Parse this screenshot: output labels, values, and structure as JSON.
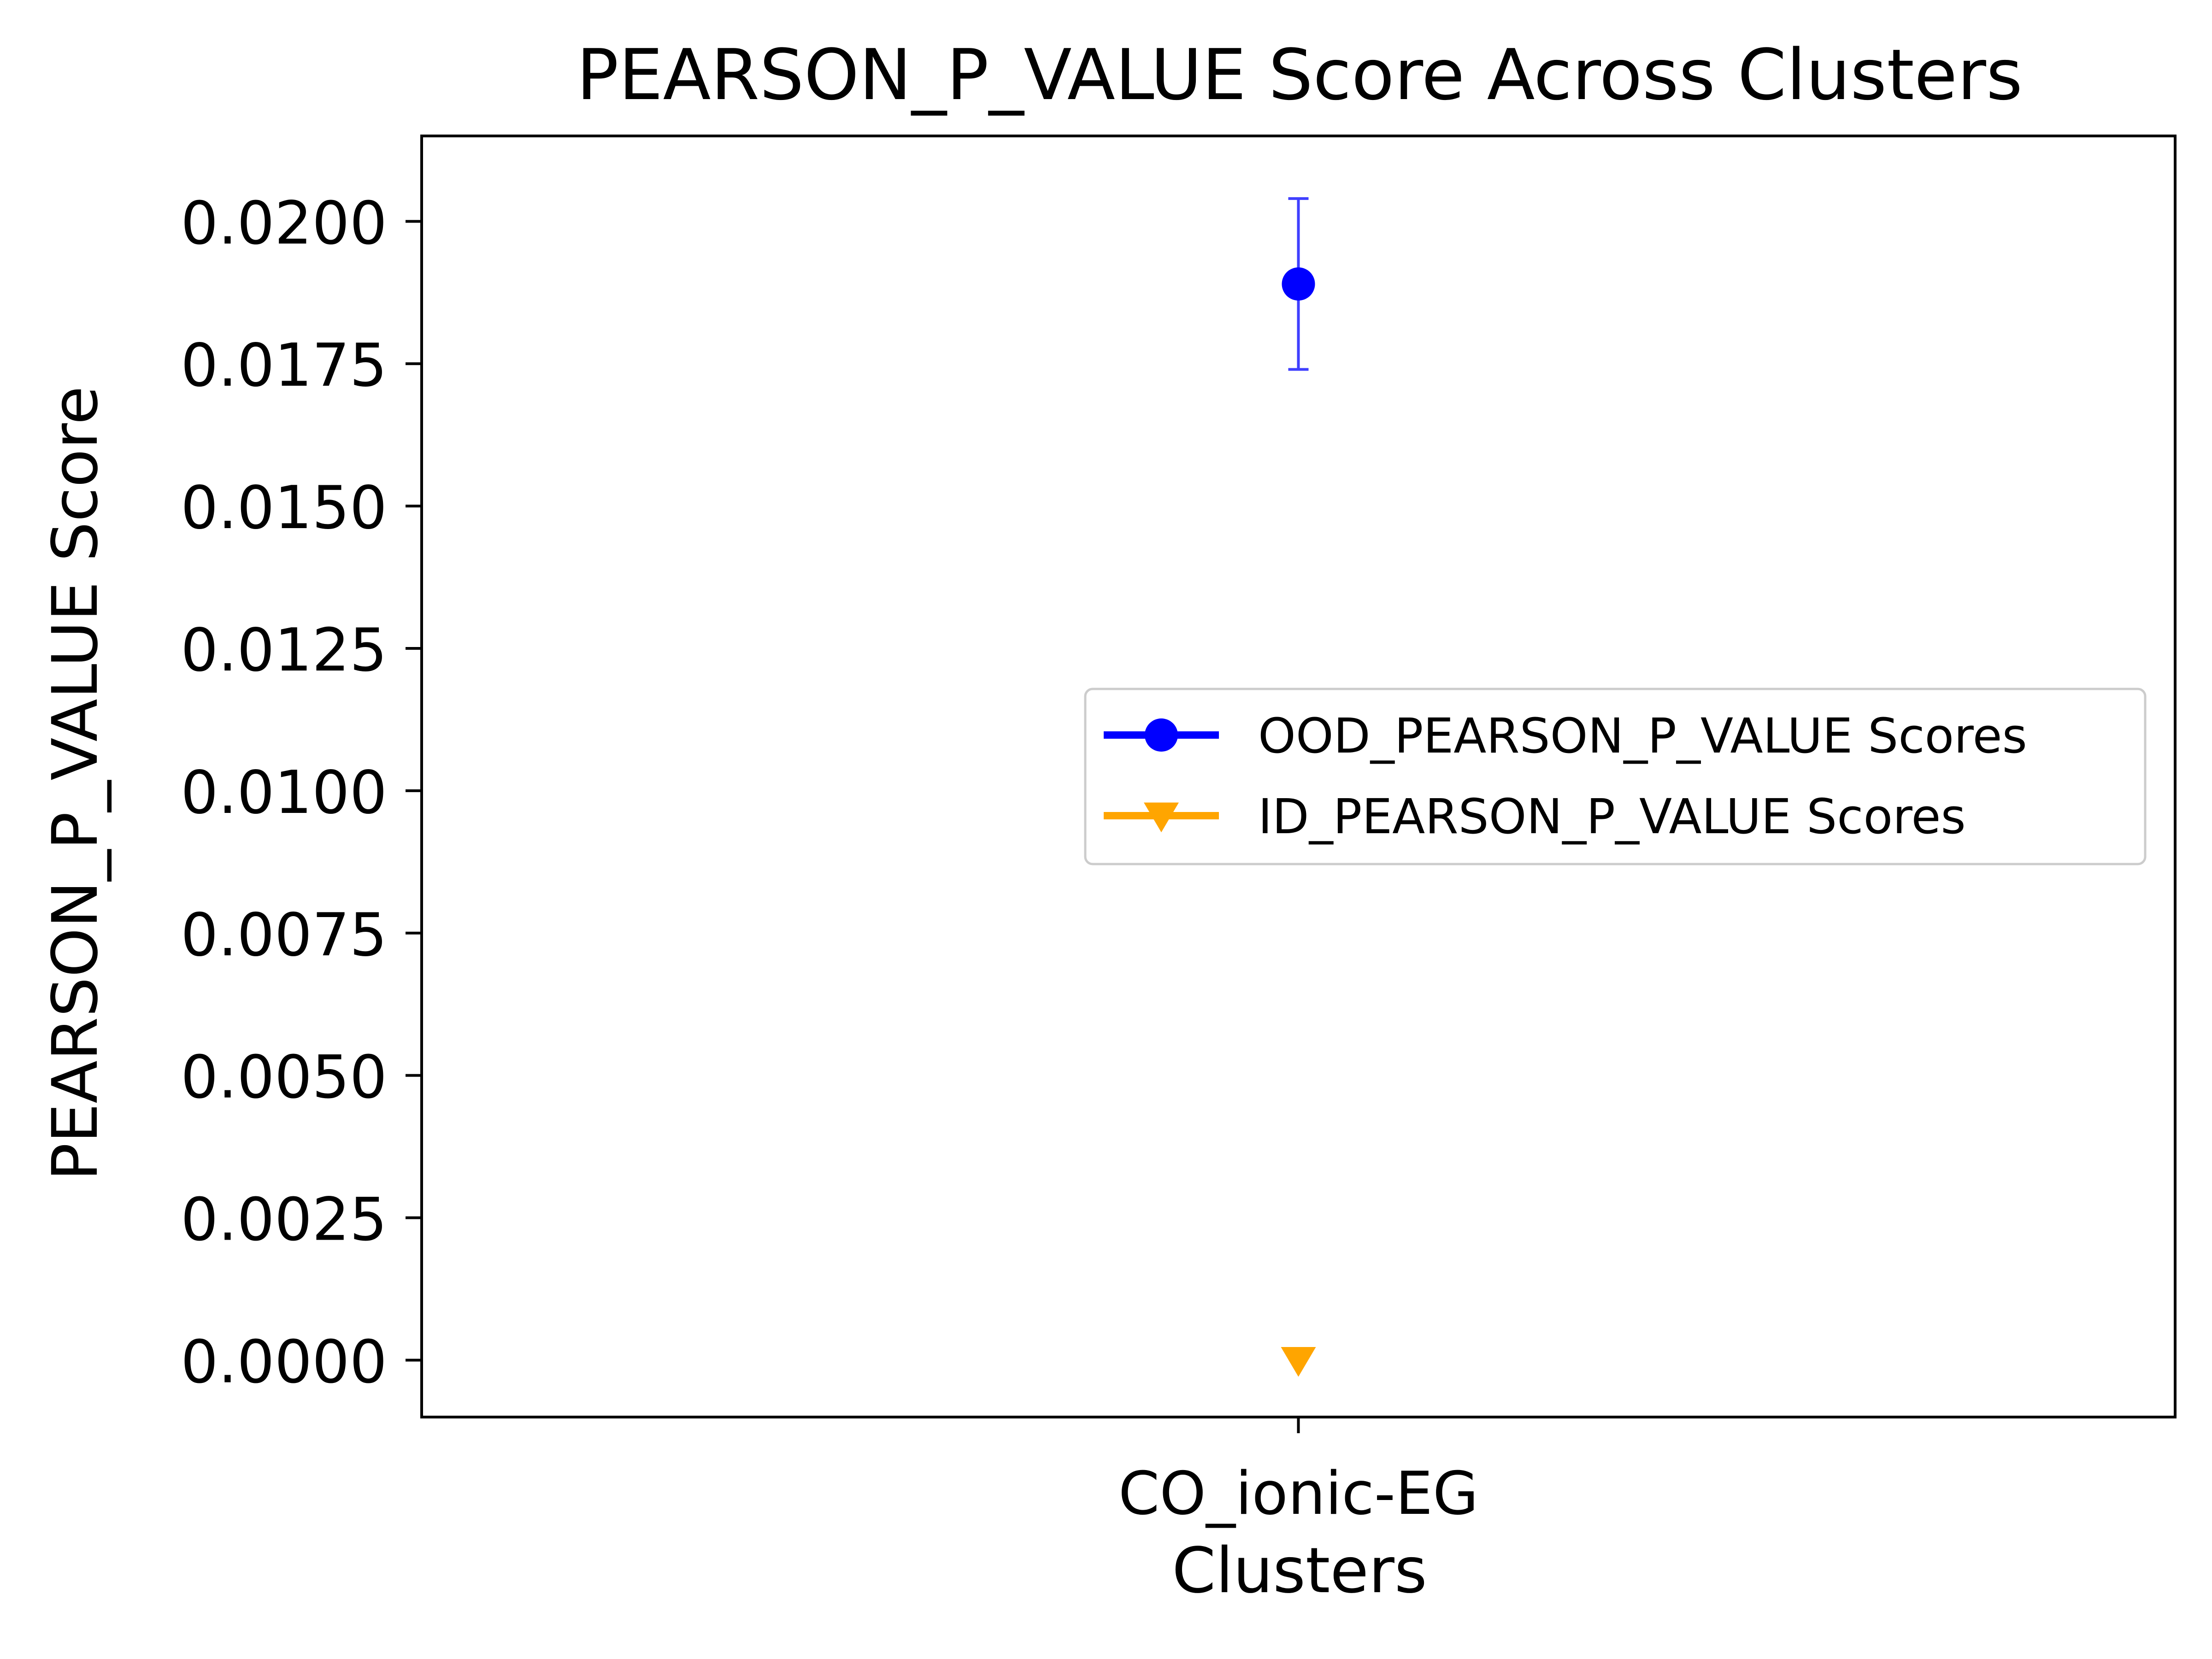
{
  "chart_data": {
    "type": "scatter",
    "title": "PEARSON_P_VALUE Score Across Clusters",
    "xlabel": "Clusters",
    "ylabel": "PEARSON_P_VALUE Score",
    "categories": [
      "CO_ionic-EG"
    ],
    "ylim": [
      -0.001,
      0.0215
    ],
    "yticks": [
      {
        "value": 0.0,
        "label": "0.0000"
      },
      {
        "value": 0.0025,
        "label": "0.0025"
      },
      {
        "value": 0.005,
        "label": "0.0050"
      },
      {
        "value": 0.0075,
        "label": "0.0075"
      },
      {
        "value": 0.01,
        "label": "0.0100"
      },
      {
        "value": 0.0125,
        "label": "0.0125"
      },
      {
        "value": 0.015,
        "label": "0.0150"
      },
      {
        "value": 0.0175,
        "label": "0.0175"
      },
      {
        "value": 0.02,
        "label": "0.0200"
      }
    ],
    "grid": false,
    "legend_position": "center-right",
    "series": [
      {
        "name": "OOD_PEARSON_P_VALUE Scores",
        "color": "#0000ff",
        "marker": "circle",
        "values": [
          0.0189
        ],
        "error": [
          0.0015
        ]
      },
      {
        "name": "ID_PEARSON_P_VALUE Scores",
        "color": "#ffa500",
        "marker": "triangle-down",
        "values": [
          0.0
        ]
      }
    ]
  }
}
